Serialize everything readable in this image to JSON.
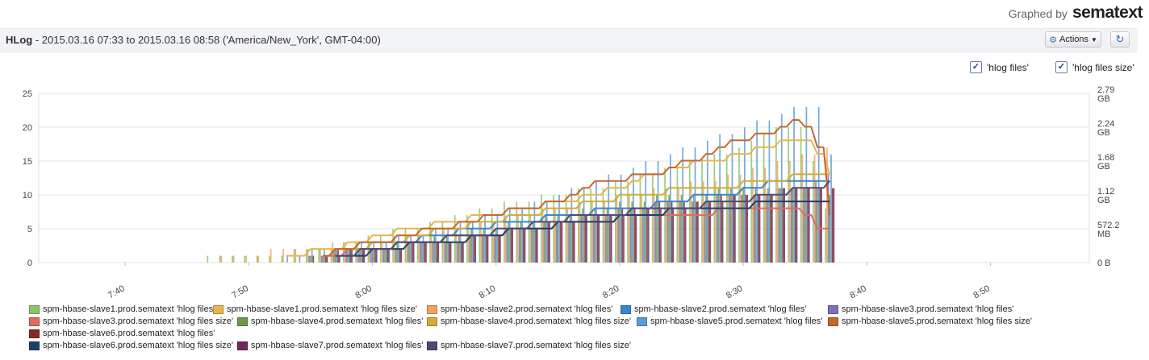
{
  "branding": {
    "graphed_by": "Graphed by",
    "logo": "sematext"
  },
  "header": {
    "title_bold": "HLog",
    "title_rest": " - 2015.03.16 07:33 to 2015.03.16 08:58 ('America/New_York', GMT-04:00)",
    "actions_label": "Actions",
    "actions_icon": "gear-icon",
    "refresh_icon": "refresh-icon"
  },
  "toggles": [
    {
      "label": "'hlog files'",
      "checked": true
    },
    {
      "label": "'hlog files size'",
      "checked": true
    }
  ],
  "chart_data": {
    "type": "bar",
    "title": "",
    "x_ticks": [
      "7:40",
      "7:50",
      "8:00",
      "8:10",
      "8:20",
      "8:30",
      "8:40",
      "8:50"
    ],
    "x_range": [
      "07:33",
      "08:58"
    ],
    "left_axis": {
      "ticks": [
        "0",
        "5",
        "10",
        "15",
        "20",
        "25"
      ],
      "range": [
        0,
        25
      ]
    },
    "right_axis": {
      "ticks": [
        "0 B",
        "572.2 MB",
        "1.12 GB",
        "1.68 GB",
        "2.24 GB",
        "2.79 GB"
      ],
      "range_gb": [
        0,
        2.79
      ]
    },
    "grid": true,
    "legend_position": "bottom",
    "series": [
      {
        "name": "spm-hbase-slave1.prod.sematext 'hlog files'",
        "color": "#8cc36b",
        "kind": "bar",
        "knots": [
          [
            7.78,
            1
          ],
          [
            7.82,
            1
          ],
          [
            7.95,
            2
          ],
          [
            8.0,
            4
          ],
          [
            8.1,
            6
          ],
          [
            8.2,
            9
          ],
          [
            8.3,
            11
          ],
          [
            8.4,
            14
          ],
          [
            8.5,
            17
          ],
          [
            8.55,
            20
          ],
          [
            8.59,
            20
          ],
          [
            8.62,
            6
          ]
        ]
      },
      {
        "name": "spm-hbase-slave1.prod.sematext 'hlog files size'",
        "color": "#e8b64a",
        "kind": "line",
        "knots": [
          [
            7.87,
            0.1
          ],
          [
            7.95,
            0.23
          ],
          [
            8.0,
            0.45
          ],
          [
            8.05,
            0.57
          ],
          [
            8.1,
            0.68
          ],
          [
            8.17,
            0.81
          ],
          [
            8.2,
            0.9
          ],
          [
            8.3,
            1.13
          ],
          [
            8.35,
            1.35
          ],
          [
            8.4,
            1.58
          ],
          [
            8.5,
            1.8
          ],
          [
            8.55,
            2.03
          ],
          [
            8.59,
            2.03
          ],
          [
            8.62,
            1.35
          ]
        ]
      },
      {
        "name": "spm-hbase-slave2.prod.sematext 'hlog files'",
        "color": "#f0a35e",
        "kind": "bar",
        "knots": [
          [
            7.8,
            1
          ],
          [
            7.9,
            2
          ],
          [
            8.0,
            3
          ],
          [
            8.1,
            5
          ],
          [
            8.2,
            7
          ],
          [
            8.3,
            9
          ],
          [
            8.4,
            11
          ],
          [
            8.5,
            13
          ],
          [
            8.55,
            15
          ],
          [
            8.59,
            16
          ],
          [
            8.62,
            17
          ]
        ]
      },
      {
        "name": "spm-hbase-slave2.prod.sematext 'hlog files'",
        "color": "#3a86d1",
        "kind": "line",
        "knots": [
          [
            7.92,
            0.1
          ],
          [
            8.0,
            0.28
          ],
          [
            8.05,
            0.35
          ],
          [
            8.1,
            0.5
          ],
          [
            8.2,
            0.7
          ],
          [
            8.3,
            0.85
          ],
          [
            8.4,
            1.0
          ],
          [
            8.5,
            1.2
          ],
          [
            8.55,
            1.35
          ],
          [
            8.62,
            1.35
          ]
        ]
      },
      {
        "name": "spm-hbase-slave3.prod.sematext 'hlog files'",
        "color": "#8070b8",
        "kind": "bar",
        "knots": [
          [
            7.9,
            1
          ],
          [
            8.0,
            2
          ],
          [
            8.1,
            3
          ],
          [
            8.2,
            5
          ],
          [
            8.3,
            7
          ],
          [
            8.4,
            9
          ],
          [
            8.5,
            10
          ],
          [
            8.58,
            11
          ],
          [
            8.62,
            13
          ]
        ]
      },
      {
        "name": "spm-hbase-slave3.prod.sematext 'hlog files size'",
        "color": "#e06c5e",
        "kind": "line",
        "knots": [
          [
            7.92,
            0.1
          ],
          [
            8.0,
            0.25
          ],
          [
            8.1,
            0.4
          ],
          [
            8.2,
            0.55
          ],
          [
            8.3,
            0.7
          ],
          [
            8.4,
            0.8
          ],
          [
            8.5,
            0.88
          ],
          [
            8.57,
            0.95
          ],
          [
            8.6,
            0.6
          ],
          [
            8.62,
            0.5
          ]
        ]
      },
      {
        "name": "spm-hbase-slave4.prod.sematext 'hlog files'",
        "color": "#6e9a48",
        "kind": "bar",
        "knots": [
          [
            7.9,
            1
          ],
          [
            8.0,
            2
          ],
          [
            8.1,
            4
          ],
          [
            8.2,
            6
          ],
          [
            8.3,
            8
          ],
          [
            8.4,
            10
          ],
          [
            8.5,
            11
          ],
          [
            8.6,
            11
          ],
          [
            8.62,
            10
          ]
        ]
      },
      {
        "name": "spm-hbase-slave4.prod.sematext 'hlog files size'",
        "color": "#cfae36",
        "kind": "line",
        "knots": [
          [
            7.92,
            0.1
          ],
          [
            8.0,
            0.3
          ],
          [
            8.1,
            0.55
          ],
          [
            8.2,
            0.8
          ],
          [
            8.3,
            1.0
          ],
          [
            8.4,
            1.2
          ],
          [
            8.5,
            1.3
          ],
          [
            8.55,
            1.4
          ],
          [
            8.6,
            1.45
          ],
          [
            8.62,
            1.4
          ]
        ]
      },
      {
        "name": "spm-hbase-slave5.prod.sematext 'hlog files'",
        "color": "#5a9ad8",
        "kind": "bar",
        "knots": [
          [
            7.88,
            1
          ],
          [
            8.0,
            3
          ],
          [
            8.1,
            5
          ],
          [
            8.2,
            8
          ],
          [
            8.3,
            12
          ],
          [
            8.4,
            16
          ],
          [
            8.5,
            20
          ],
          [
            8.57,
            23
          ],
          [
            8.6,
            23
          ],
          [
            8.62,
            15
          ]
        ]
      },
      {
        "name": "spm-hbase-slave5.prod.sematext 'hlog files size'",
        "color": "#c8672c",
        "kind": "line",
        "knots": [
          [
            7.93,
            0.1
          ],
          [
            8.0,
            0.35
          ],
          [
            8.1,
            0.6
          ],
          [
            8.2,
            0.9
          ],
          [
            8.25,
            1.05
          ],
          [
            8.3,
            1.3
          ],
          [
            8.4,
            1.55
          ],
          [
            8.45,
            1.8
          ],
          [
            8.5,
            2.05
          ],
          [
            8.55,
            2.25
          ],
          [
            8.58,
            2.35
          ],
          [
            8.6,
            1.9
          ],
          [
            8.62,
            0.55
          ]
        ]
      },
      {
        "name": "spm-hbase-slave6.prod.sematext 'hlog files'",
        "color": "#8a2a24",
        "kind": "bar",
        "knots": [
          [
            7.9,
            1
          ],
          [
            8.0,
            2
          ],
          [
            8.1,
            3
          ],
          [
            8.2,
            5
          ],
          [
            8.3,
            7
          ],
          [
            8.4,
            9
          ],
          [
            8.5,
            10
          ],
          [
            8.6,
            11
          ],
          [
            8.62,
            11
          ]
        ]
      },
      {
        "name": "spm-hbase-slave6.prod.sematext 'hlog files size'",
        "color": "#1f3f6e",
        "kind": "line",
        "knots": [
          [
            7.95,
            0.1
          ],
          [
            8.0,
            0.2
          ],
          [
            8.05,
            0.3
          ],
          [
            8.1,
            0.35
          ],
          [
            8.2,
            0.55
          ],
          [
            8.3,
            0.7
          ],
          [
            8.4,
            0.85
          ],
          [
            8.5,
            0.95
          ],
          [
            8.55,
            1.05
          ],
          [
            8.6,
            1.05
          ],
          [
            8.62,
            1.0
          ]
        ]
      },
      {
        "name": "spm-hbase-slave7.prod.sematext 'hlog files'",
        "color": "#702a58",
        "kind": "bar",
        "knots": [
          [
            7.92,
            1
          ],
          [
            8.0,
            2
          ],
          [
            8.1,
            3
          ],
          [
            8.2,
            5
          ],
          [
            8.3,
            7
          ],
          [
            8.4,
            8
          ],
          [
            8.5,
            10
          ],
          [
            8.6,
            11
          ],
          [
            8.62,
            11
          ]
        ]
      },
      {
        "name": "spm-hbase-slave7.prod.sematext 'hlog files size'",
        "color": "#4d4a7a",
        "kind": "line",
        "knots": [
          [
            7.95,
            0.1
          ],
          [
            8.0,
            0.25
          ],
          [
            8.1,
            0.4
          ],
          [
            8.2,
            0.6
          ],
          [
            8.3,
            0.8
          ],
          [
            8.4,
            0.9
          ],
          [
            8.5,
            1.05
          ],
          [
            8.55,
            1.15
          ],
          [
            8.6,
            1.25
          ],
          [
            8.62,
            1.3
          ]
        ]
      }
    ]
  }
}
